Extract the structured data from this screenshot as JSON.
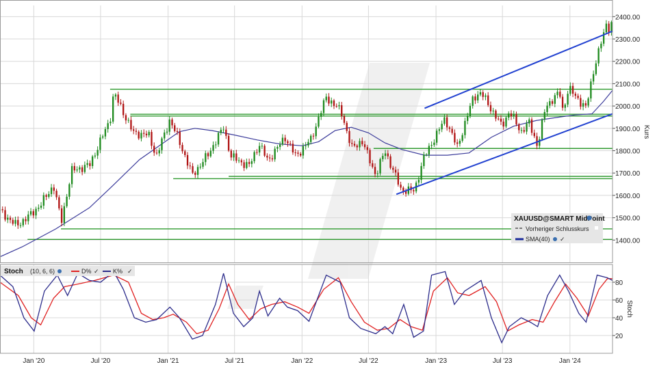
{
  "chart_data": [
    {
      "type": "candlestick",
      "panel": "price",
      "ylabel": "Kurs",
      "ylim": [
        1300,
        2450
      ],
      "y_ticks": [
        "1400.00",
        "1500.00",
        "1600.00",
        "1700.00",
        "1800.00",
        "1900.00",
        "2000.00",
        "2100.00",
        "2200.00",
        "2300.00",
        "2400.00"
      ],
      "x_ticks": [
        "Jan '20",
        "Jul '20",
        "Jan '21",
        "Jul '21",
        "Jan '22",
        "Jul '22",
        "Jan '23",
        "Jul '23",
        "Jan '24"
      ],
      "x_range": [
        "2019-10-01",
        "2024-04-26"
      ],
      "grid": true,
      "legend": {
        "placement": "bottom-right",
        "title": "XAUUSD@SMART MidPoint",
        "entries": [
          "Vorheriger Schlusskurs",
          "SMA(40)"
        ]
      },
      "series": [
        {
          "name": "XAUUSD@SMART MidPoint",
          "kind": "candles",
          "color_up": "#1e8a1e",
          "color_down": "#b01414",
          "close_path": [
            [
              "2019-10-01",
              1530
            ],
            [
              "2019-11-15",
              1465
            ],
            [
              "2019-12-25",
              1515
            ],
            [
              "2020-01-20",
              1560
            ],
            [
              "2020-02-24",
              1645
            ],
            [
              "2020-03-16",
              1480
            ],
            [
              "2020-04-13",
              1710
            ],
            [
              "2020-06-01",
              1735
            ],
            [
              "2020-07-27",
              1940
            ],
            [
              "2020-08-06",
              2060
            ],
            [
              "2020-09-28",
              1880
            ],
            [
              "2020-11-09",
              1870
            ],
            [
              "2020-11-30",
              1775
            ],
            [
              "2021-01-06",
              1940
            ],
            [
              "2021-02-01",
              1840
            ],
            [
              "2021-03-08",
              1690
            ],
            [
              "2021-04-19",
              1780
            ],
            [
              "2021-06-01",
              1905
            ],
            [
              "2021-06-21",
              1775
            ],
            [
              "2021-08-09",
              1730
            ],
            [
              "2021-09-06",
              1830
            ],
            [
              "2021-09-30",
              1755
            ],
            [
              "2021-11-16",
              1860
            ],
            [
              "2021-12-15",
              1775
            ],
            [
              "2022-01-25",
              1850
            ],
            [
              "2022-03-08",
              2040
            ],
            [
              "2022-04-18",
              1975
            ],
            [
              "2022-05-16",
              1810
            ],
            [
              "2022-06-13",
              1845
            ],
            [
              "2022-07-21",
              1690
            ],
            [
              "2022-08-15",
              1800
            ],
            [
              "2022-09-28",
              1625
            ],
            [
              "2022-11-03",
              1620
            ],
            [
              "2022-11-28",
              1765
            ],
            [
              "2023-01-26",
              1945
            ],
            [
              "2023-02-28",
              1815
            ],
            [
              "2023-04-13",
              2040
            ],
            [
              "2023-05-04",
              2060
            ],
            [
              "2023-06-29",
              1910
            ],
            [
              "2023-07-20",
              1975
            ],
            [
              "2023-08-21",
              1885
            ],
            [
              "2023-09-12",
              1925
            ],
            [
              "2023-10-05",
              1820
            ],
            [
              "2023-10-27",
              2000
            ],
            [
              "2023-12-04",
              2060
            ],
            [
              "2023-12-13",
              1975
            ],
            [
              "2023-12-28",
              2080
            ],
            [
              "2024-02-14",
              1990
            ],
            [
              "2024-03-08",
              2180
            ],
            [
              "2024-04-12",
              2380
            ],
            [
              "2024-04-19",
              2330
            ],
            [
              "2024-04-26",
              2400
            ]
          ]
        },
        {
          "name": "SMA(40)",
          "kind": "line",
          "color": "#3a3a9a",
          "points": [
            [
              "2019-10-01",
              1325
            ],
            [
              "2019-12-01",
              1370
            ],
            [
              "2020-03-01",
              1450
            ],
            [
              "2020-06-01",
              1545
            ],
            [
              "2020-08-01",
              1640
            ],
            [
              "2020-10-15",
              1760
            ],
            [
              "2021-01-01",
              1850
            ],
            [
              "2021-02-01",
              1885
            ],
            [
              "2021-03-15",
              1900
            ],
            [
              "2021-05-01",
              1890
            ],
            [
              "2021-07-01",
              1870
            ],
            [
              "2021-09-01",
              1848
            ],
            [
              "2021-11-01",
              1830
            ],
            [
              "2022-01-01",
              1822
            ],
            [
              "2022-02-15",
              1840
            ],
            [
              "2022-04-01",
              1890
            ],
            [
              "2022-05-15",
              1905
            ],
            [
              "2022-07-01",
              1880
            ],
            [
              "2022-08-15",
              1835
            ],
            [
              "2022-10-01",
              1805
            ],
            [
              "2022-12-01",
              1780
            ],
            [
              "2023-02-01",
              1780
            ],
            [
              "2023-04-01",
              1790
            ],
            [
              "2023-06-01",
              1860
            ],
            [
              "2023-08-01",
              1910
            ],
            [
              "2023-10-01",
              1935
            ],
            [
              "2023-12-01",
              1950
            ],
            [
              "2024-01-15",
              1960
            ],
            [
              "2024-03-01",
              1965
            ],
            [
              "2024-04-01",
              2020
            ],
            [
              "2024-04-26",
              2070
            ]
          ]
        },
        {
          "name": "Trendlinie oben",
          "kind": "line",
          "color": "#2040d0",
          "points": [
            [
              "2022-12-01",
              1990
            ],
            [
              "2024-04-26",
              2335
            ]
          ]
        },
        {
          "name": "Trendlinie unten",
          "kind": "line",
          "color": "#2040d0",
          "points": [
            [
              "2022-09-15",
              1605
            ],
            [
              "2024-04-26",
              1965
            ]
          ]
        }
      ],
      "horizontal_lines": [
        {
          "value": 2075,
          "from": "2020-07-27",
          "to": "2024-04-26",
          "color": "#2f9a2f"
        },
        {
          "value": 1963,
          "from": "2020-09-20",
          "to": "2024-04-26",
          "color": "#2f9a2f"
        },
        {
          "value": 1955,
          "from": "2020-09-20",
          "to": "2024-04-26",
          "color": "#2f9a2f"
        },
        {
          "value": 1810,
          "from": "2022-07-15",
          "to": "2024-04-26",
          "color": "#2f9a2f"
        },
        {
          "value": 1685,
          "from": "2021-06-15",
          "to": "2024-04-26",
          "color": "#2f9a2f"
        },
        {
          "value": 1675,
          "from": "2021-01-15",
          "to": "2024-04-26",
          "color": "#2f9a2f"
        },
        {
          "value": 1450,
          "from": "2020-03-15",
          "to": "2024-04-26",
          "color": "#2f9a2f"
        },
        {
          "value": 1403,
          "from": "2019-12-15",
          "to": "2024-04-26",
          "color": "#2f9a2f"
        }
      ]
    },
    {
      "type": "line",
      "panel": "oscillator",
      "title": "Stoch",
      "params": "(10, 6, 6)",
      "ylabel": "Stoch",
      "ylim": [
        0,
        100
      ],
      "y_ticks": [
        "20",
        "40",
        "60",
        "80"
      ],
      "grid": true,
      "legend": {
        "placement": "top-left",
        "entries": [
          "D%",
          "K%"
        ]
      },
      "series": [
        {
          "name": "K%",
          "color": "#2a2a8a",
          "points": [
            [
              "2019-10-01",
              88
            ],
            [
              "2019-11-05",
              75
            ],
            [
              "2019-12-05",
              40
            ],
            [
              "2020-01-02",
              25
            ],
            [
              "2020-01-30",
              70
            ],
            [
              "2020-03-05",
              88
            ],
            [
              "2020-04-02",
              65
            ],
            [
              "2020-04-30",
              90
            ],
            [
              "2020-06-01",
              82
            ],
            [
              "2020-07-01",
              80
            ],
            [
              "2020-08-06",
              92
            ],
            [
              "2020-09-01",
              72
            ],
            [
              "2020-10-01",
              40
            ],
            [
              "2020-11-01",
              35
            ],
            [
              "2020-12-01",
              38
            ],
            [
              "2021-01-06",
              52
            ],
            [
              "2021-02-01",
              40
            ],
            [
              "2021-03-08",
              16
            ],
            [
              "2021-04-05",
              20
            ],
            [
              "2021-05-10",
              55
            ],
            [
              "2021-06-01",
              90
            ],
            [
              "2021-06-28",
              45
            ],
            [
              "2021-07-26",
              30
            ],
            [
              "2021-08-20",
              40
            ],
            [
              "2021-09-07",
              70
            ],
            [
              "2021-09-30",
              42
            ],
            [
              "2021-11-01",
              62
            ],
            [
              "2021-11-22",
              52
            ],
            [
              "2021-12-20",
              48
            ],
            [
              "2022-01-20",
              36
            ],
            [
              "2022-03-08",
              88
            ],
            [
              "2022-04-15",
              80
            ],
            [
              "2022-05-10",
              40
            ],
            [
              "2022-06-10",
              28
            ],
            [
              "2022-07-21",
              22
            ],
            [
              "2022-08-15",
              30
            ],
            [
              "2022-09-05",
              22
            ],
            [
              "2022-10-05",
              55
            ],
            [
              "2022-11-01",
              18
            ],
            [
              "2022-11-28",
              25
            ],
            [
              "2022-12-20",
              88
            ],
            [
              "2023-01-26",
              92
            ],
            [
              "2023-02-20",
              55
            ],
            [
              "2023-03-20",
              70
            ],
            [
              "2023-05-04",
              82
            ],
            [
              "2023-06-01",
              40
            ],
            [
              "2023-06-29",
              12
            ],
            [
              "2023-07-20",
              30
            ],
            [
              "2023-08-21",
              40
            ],
            [
              "2023-09-15",
              35
            ],
            [
              "2023-10-05",
              30
            ],
            [
              "2023-11-01",
              65
            ],
            [
              "2023-12-04",
              88
            ],
            [
              "2023-12-28",
              70
            ],
            [
              "2024-01-25",
              45
            ],
            [
              "2024-02-14",
              35
            ],
            [
              "2024-03-15",
              88
            ],
            [
              "2024-04-12",
              85
            ],
            [
              "2024-04-26",
              82
            ]
          ]
        },
        {
          "name": "D%",
          "color": "#e02020",
          "points": [
            [
              "2019-10-01",
              80
            ],
            [
              "2019-11-20",
              65
            ],
            [
              "2019-12-25",
              40
            ],
            [
              "2020-01-20",
              32
            ],
            [
              "2020-02-24",
              62
            ],
            [
              "2020-03-25",
              75
            ],
            [
              "2020-05-01",
              78
            ],
            [
              "2020-06-15",
              82
            ],
            [
              "2020-08-06",
              88
            ],
            [
              "2020-09-15",
              80
            ],
            [
              "2020-10-20",
              45
            ],
            [
              "2020-11-20",
              38
            ],
            [
              "2020-12-20",
              40
            ],
            [
              "2021-01-15",
              44
            ],
            [
              "2021-02-20",
              35
            ],
            [
              "2021-03-20",
              22
            ],
            [
              "2021-04-20",
              26
            ],
            [
              "2021-05-20",
              50
            ],
            [
              "2021-06-15",
              78
            ],
            [
              "2021-07-10",
              55
            ],
            [
              "2021-08-10",
              38
            ],
            [
              "2021-09-10",
              50
            ],
            [
              "2021-10-10",
              55
            ],
            [
              "2021-11-15",
              58
            ],
            [
              "2021-12-20",
              52
            ],
            [
              "2022-01-20",
              45
            ],
            [
              "2022-03-01",
              72
            ],
            [
              "2022-04-10",
              85
            ],
            [
              "2022-05-15",
              58
            ],
            [
              "2022-06-20",
              35
            ],
            [
              "2022-07-25",
              26
            ],
            [
              "2022-08-25",
              28
            ],
            [
              "2022-09-25",
              38
            ],
            [
              "2022-10-25",
              30
            ],
            [
              "2022-11-25",
              26
            ],
            [
              "2022-12-25",
              70
            ],
            [
              "2023-02-01",
              85
            ],
            [
              "2023-03-01",
              68
            ],
            [
              "2023-04-01",
              65
            ],
            [
              "2023-05-15",
              75
            ],
            [
              "2023-06-15",
              58
            ],
            [
              "2023-07-15",
              25
            ],
            [
              "2023-08-15",
              32
            ],
            [
              "2023-09-20",
              38
            ],
            [
              "2023-10-20",
              35
            ],
            [
              "2023-11-20",
              58
            ],
            [
              "2023-12-20",
              78
            ],
            [
              "2024-01-20",
              62
            ],
            [
              "2024-02-20",
              42
            ],
            [
              "2024-03-20",
              72
            ],
            [
              "2024-04-12",
              84
            ],
            [
              "2024-04-26",
              84
            ]
          ]
        }
      ]
    }
  ]
}
